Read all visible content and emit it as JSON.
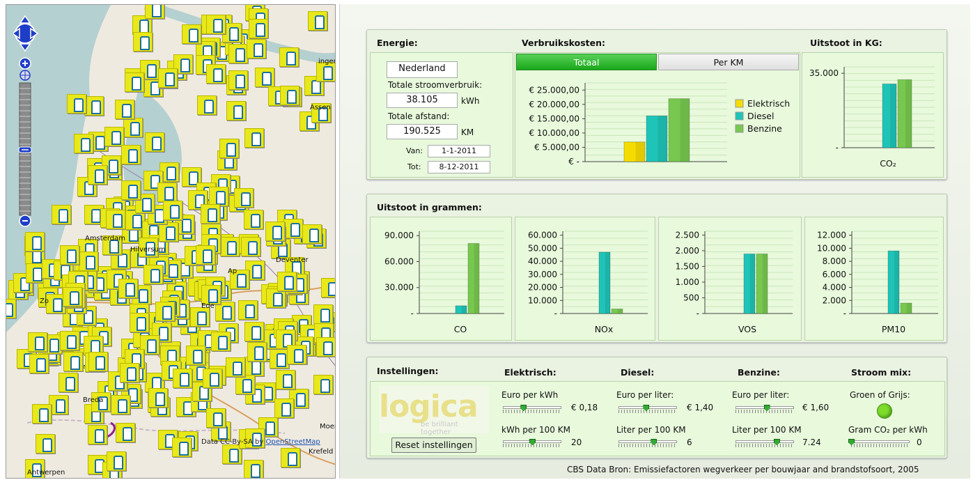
{
  "map": {
    "labels": [
      "Amsterdam",
      "Hilversum",
      "Deventer",
      "Breda",
      "Antwerpen",
      "Assen",
      "Krefeld",
      "Ede",
      "Moers",
      "ingen",
      "Zo",
      "Ap"
    ],
    "attribution_prefix": "Data CC-By-SA by ",
    "attribution_link": "OpenStreetMap"
  },
  "energie": {
    "title": "Energie:",
    "region": "Nederland",
    "stroom_label": "Totale stroomverbruik:",
    "stroom_value": "38.105",
    "stroom_unit": "kWh",
    "afstand_label": "Totale afstand:",
    "afstand_value": "190.525",
    "afstand_unit": "KM",
    "van_label": "Van:",
    "van_value": "1-1-2011",
    "tot_label": "Tot:",
    "tot_value": "8-12-2011"
  },
  "kosten": {
    "title": "Verbruikskosten:",
    "tabs": [
      "Totaal",
      "Per KM"
    ],
    "active_tab": 0
  },
  "uitstoot_kg": {
    "title": "Uitstoot in KG:"
  },
  "uitstoot_gram": {
    "title": "Uitstoot in grammen:"
  },
  "instellingen": {
    "title": "Instellingen:",
    "logo_text": "logica",
    "logo_tagline": "be brilliant together",
    "reset_label": "Reset instellingen",
    "elektrisch": {
      "title": "Elektrisch:",
      "l1": "Euro per kWh",
      "v1": "€ 0,18",
      "p1": 0.35,
      "l2": "kWh per 100 KM",
      "v2": "20",
      "p2": 0.5
    },
    "diesel": {
      "title": "Diesel:",
      "l1": "Euro per liter:",
      "v1": "€ 1,40",
      "p1": 0.47,
      "l2": "Liter per 100 KM",
      "v2": "6",
      "p2": 0.6
    },
    "benzine": {
      "title": "Benzine:",
      "l1": "Euro per liter:",
      "v1": "€ 1,60",
      "p1": 0.53,
      "l2": "Liter per 100 KM",
      "v2": "7.24",
      "p2": 0.7
    },
    "stroom": {
      "title": "Stroom mix:",
      "l1": "Groen of Grijs:",
      "l2": "Gram CO₂ per kWh",
      "v2": "0",
      "p2": 0.0,
      "indicator_color": "#7fdc2a"
    }
  },
  "footer": {
    "source": "CBS Data Bron: Emissiefactoren wegverkeer per bouwjaar and brandstofsoort, 2005"
  },
  "colors": {
    "elektrisch": "#f5dc00",
    "diesel": "#1fc4b8",
    "benzine": "#78c850"
  },
  "chart_data": [
    {
      "type": "bar",
      "title": "",
      "categories": [
        ""
      ],
      "series": [
        {
          "name": "Elektrisch",
          "values": [
            6859
          ]
        },
        {
          "name": "Diesel",
          "values": [
            16000
          ]
        },
        {
          "name": "Benzine",
          "values": [
            22000
          ]
        }
      ],
      "ylim": [
        0,
        27500
      ],
      "yticks": [
        0,
        5000,
        10000,
        15000,
        20000,
        25000
      ],
      "ytick_labels": [
        "€ -",
        "€ 5.000,00",
        "€ 10.000,00",
        "€ 15.000,00",
        "€ 20.000,00",
        "€ 25.000,00"
      ],
      "legend": "right"
    },
    {
      "type": "bar",
      "xlabel": "CO₂",
      "categories": [
        "CO₂"
      ],
      "series": [
        {
          "name": "Diesel",
          "values": [
            30000
          ]
        },
        {
          "name": "Benzine",
          "values": [
            32000
          ]
        }
      ],
      "ylim": [
        0,
        38000
      ],
      "yticks": [
        0,
        35000
      ],
      "ytick_labels": [
        "-",
        "35.000"
      ]
    },
    {
      "type": "bar",
      "xlabel": "CO",
      "categories": [
        "CO"
      ],
      "series": [
        {
          "name": "Diesel",
          "values": [
            9000
          ]
        },
        {
          "name": "Benzine",
          "values": [
            81000
          ]
        }
      ],
      "ylim": [
        0,
        95000
      ],
      "yticks": [
        0,
        30000,
        60000,
        90000
      ],
      "ytick_labels": [
        "-",
        "30.000",
        "60.000",
        "90.000"
      ]
    },
    {
      "type": "bar",
      "xlabel": "NOx",
      "categories": [
        "NOx"
      ],
      "series": [
        {
          "name": "Diesel",
          "values": [
            47000
          ]
        },
        {
          "name": "Benzine",
          "values": [
            3500
          ]
        }
      ],
      "ylim": [
        0,
        63000
      ],
      "yticks": [
        0,
        10000,
        20000,
        30000,
        40000,
        50000,
        60000
      ],
      "ytick_labels": [
        "-",
        "10.000",
        "20.000",
        "30.000",
        "40.000",
        "50.000",
        "60.000"
      ]
    },
    {
      "type": "bar",
      "xlabel": "VOS",
      "categories": [
        "VOS"
      ],
      "series": [
        {
          "name": "Diesel",
          "values": [
            1900
          ]
        },
        {
          "name": "Benzine",
          "values": [
            1900
          ]
        }
      ],
      "ylim": [
        0,
        2620
      ],
      "yticks": [
        0,
        500,
        1000,
        1500,
        2000,
        2500
      ],
      "ytick_labels": [
        "-",
        "500",
        "1.000",
        "1.500",
        "2.000",
        "2.500"
      ]
    },
    {
      "type": "bar",
      "xlabel": "PM10",
      "categories": [
        "PM10"
      ],
      "series": [
        {
          "name": "Diesel",
          "values": [
            9600
          ]
        },
        {
          "name": "Benzine",
          "values": [
            1600
          ]
        }
      ],
      "ylim": [
        0,
        12600
      ],
      "yticks": [
        0,
        2000,
        4000,
        6000,
        8000,
        10000,
        12000
      ],
      "ytick_labels": [
        "-",
        "2.000",
        "4.000",
        "6.000",
        "8.000",
        "10.000",
        "12.000"
      ]
    }
  ]
}
